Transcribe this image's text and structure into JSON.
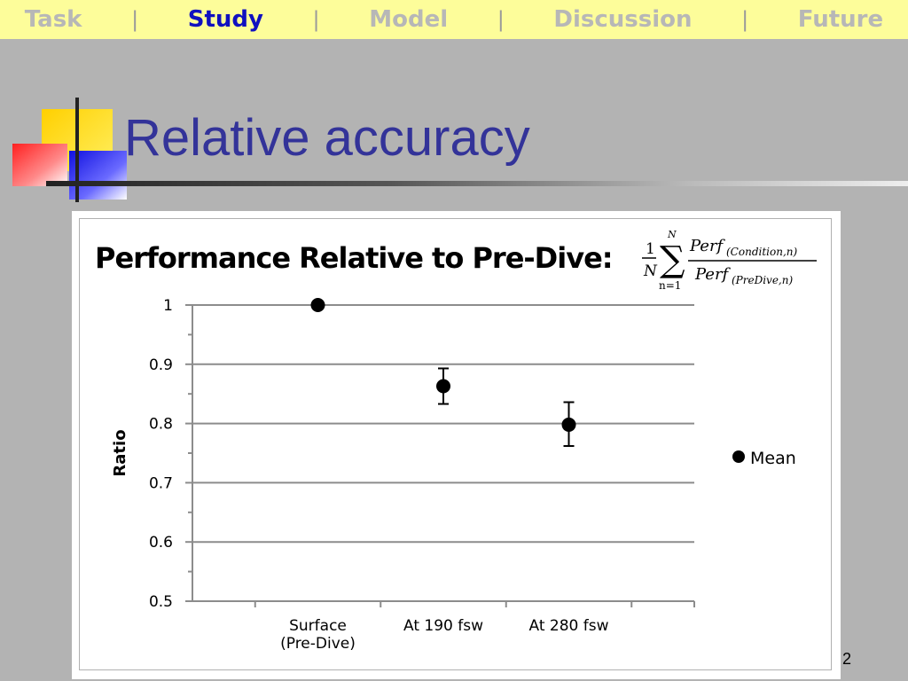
{
  "nav": {
    "items": [
      {
        "label": "Task",
        "active": false
      },
      {
        "label": "Study",
        "active": true
      },
      {
        "label": "Model",
        "active": false
      },
      {
        "label": "Discussion",
        "active": false
      },
      {
        "label": "Future",
        "active": false
      }
    ],
    "separator": "|",
    "active_color": "#1010c0",
    "inactive_color": "#b7b7b7",
    "bar_color": "#fdfd9a"
  },
  "slide": {
    "title": "Relative accuracy",
    "page_number": "2"
  },
  "chart_data": {
    "type": "scatter",
    "title": "Performance Relative to Pre-Dive:",
    "formula": {
      "one": "1",
      "N": "N",
      "sum_top": "N",
      "sum_bottom": "n=1",
      "num_main": "Perf",
      "num_sub": "(Condition,n)",
      "den_main": "Perf",
      "den_sub": "(PreDive,n)"
    },
    "categories": [
      "Surface\n(Pre-Dive)",
      "At 190 fsw",
      "At 280 fsw"
    ],
    "series": [
      {
        "name": "Mean",
        "values": [
          1.0,
          0.863,
          0.798
        ],
        "err_low": [
          1.0,
          0.833,
          0.762
        ],
        "err_high": [
          1.0,
          0.893,
          0.836
        ]
      }
    ],
    "ylabel": "Ratio",
    "xlabel": "",
    "ylim": [
      0.5,
      1.0
    ],
    "yticks": [
      "1",
      "0.9",
      "0.8",
      "0.7",
      "0.6",
      "0.5"
    ],
    "grid": true,
    "legend": "right"
  }
}
